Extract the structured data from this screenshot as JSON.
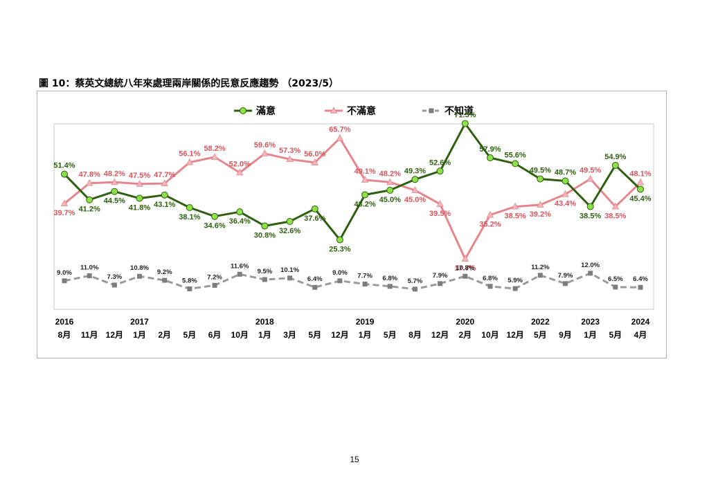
{
  "page": {
    "title": "圖 10：蔡英文總統八年來處理兩岸關係的民意反應趨勢 （2023/5）",
    "page_number": "15"
  },
  "colors": {
    "satisfied": "#2e5f0e",
    "satisfied_marker": "#8ee04a",
    "dissatisfied": "#e5868c",
    "dissatisfied_label": "#d8545d",
    "dissatisfied_marker": "#f4b6bd",
    "unknown": "#9a9a9a",
    "unknown_marker": "#7d7d7d"
  },
  "chart_data": {
    "type": "line",
    "title": "",
    "years": [
      "2016",
      "2017",
      "2018",
      "2019",
      "2020",
      "2022",
      "2023",
      "2024"
    ],
    "year_positions": [
      0,
      3,
      8,
      12,
      16,
      19,
      21,
      23
    ],
    "months": [
      "8月",
      "11月",
      "12月",
      "1月",
      "2月",
      "5月",
      "6月",
      "10月",
      "1月",
      "3月",
      "5月",
      "12月",
      "1月",
      "5月",
      "8月",
      "12月",
      "2月",
      "10月",
      "12月",
      "5月",
      "9月",
      "1月",
      "5月",
      "4月"
    ],
    "legend_position": "top",
    "grid": false,
    "series": [
      {
        "name": "滿意",
        "key": "satisfied",
        "values": [
          51.4,
          41.2,
          44.5,
          41.8,
          43.1,
          38.1,
          34.6,
          36.4,
          30.8,
          32.6,
          37.6,
          25.3,
          43.2,
          45.0,
          49.3,
          52.6,
          71.5,
          57.9,
          55.6,
          49.5,
          48.7,
          38.5,
          54.9,
          45.4
        ],
        "labels": [
          "51.4%",
          "41.2%",
          "44.5%",
          "41.8%",
          "43.1%",
          "38.1%",
          "34.6%",
          "36.4%",
          "30.8%",
          "32.6%",
          "37.6%",
          "25.3%",
          "43.2%",
          "45.0%",
          "49.3%",
          "52.6%",
          "71.5%",
          "57.9%",
          "55.6%",
          "49.5%",
          "48.7%",
          "38.5%",
          "54.9%",
          "45.4%"
        ]
      },
      {
        "name": "不滿意",
        "key": "dissatisfied",
        "values": [
          39.7,
          47.8,
          48.2,
          47.5,
          47.7,
          56.1,
          58.2,
          52.0,
          59.6,
          57.3,
          56.0,
          65.7,
          49.1,
          48.2,
          45.0,
          39.5,
          17.7,
          35.2,
          38.5,
          39.2,
          43.4,
          49.5,
          38.5,
          48.1
        ],
        "labels": [
          "39.7%",
          "47.8%",
          "48.2%",
          "47.5%",
          "47.7%",
          "56.1%",
          "58.2%",
          "52.0%",
          "59.6%",
          "57.3%",
          "56.0%",
          "65.7%",
          "49.1%",
          "48.2%",
          "45.0%",
          "39.5%",
          "17.7%",
          "35.2%",
          "38.5%",
          "39.2%",
          "43.4%",
          "49.5%",
          "38.5%",
          "48.1%"
        ]
      },
      {
        "name": "不知道",
        "key": "unknown",
        "values": [
          9.0,
          11.0,
          7.3,
          10.8,
          9.2,
          5.8,
          7.2,
          11.6,
          9.5,
          10.1,
          6.4,
          9.0,
          7.7,
          6.8,
          5.7,
          7.9,
          10.8,
          6.8,
          5.9,
          11.2,
          7.9,
          12.0,
          6.5,
          6.4
        ],
        "labels": [
          "9.0%",
          "11.0%",
          "7.3%",
          "10.8%",
          "9.2%",
          "5.8%",
          "7.2%",
          "11.6%",
          "9.5%",
          "10.1%",
          "6.4%",
          "9.0%",
          "7.7%",
          "6.8%",
          "5.7%",
          "7.9%",
          "10.8%",
          "6.8%",
          "5.9%",
          "11.2%",
          "7.9%",
          "12.0%",
          "6.5%",
          "6.4%"
        ]
      }
    ]
  }
}
